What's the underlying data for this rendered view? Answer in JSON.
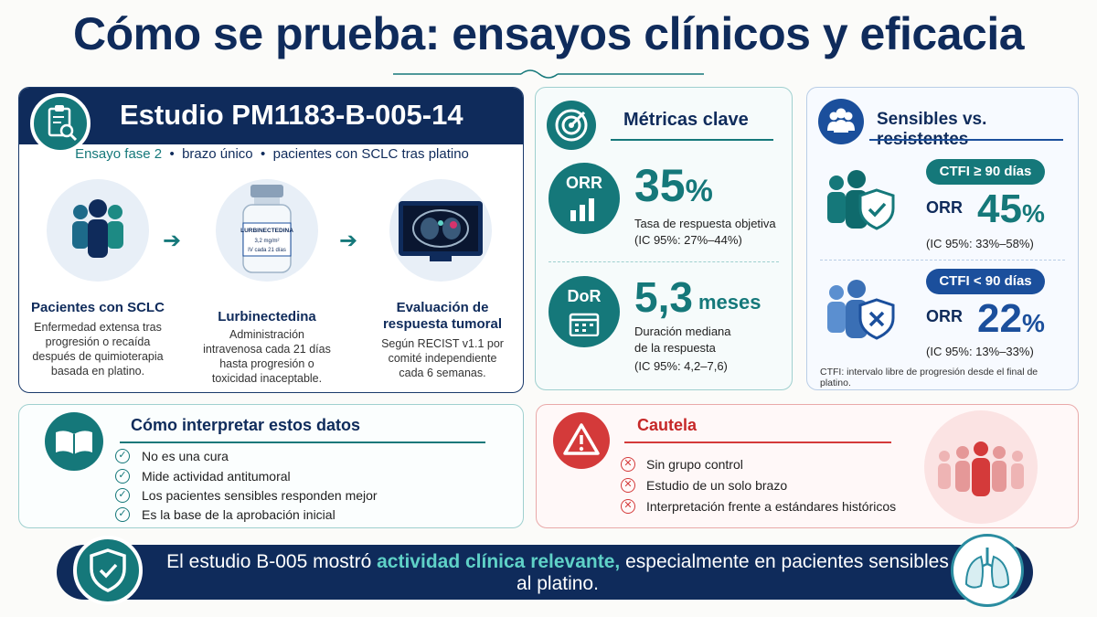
{
  "title": "Cómo se prueba: ensayos clínicos y eficacia",
  "study": {
    "title": "Estudio PM1183-B-005-14",
    "subtitle_a": "Ensayo fase 2",
    "subtitle_b": "brazo único",
    "subtitle_c": "pacientes con SCLC tras platino",
    "sep": "•",
    "steps": [
      {
        "title": "Pacientes con SCLC",
        "text": "Enfermedad extensa tras progresión o recaída después de quimioterapia basada en platino."
      },
      {
        "title": "Lurbinectedina",
        "text": "Administración intravenosa cada 21 días hasta progresión o toxicidad inaceptable."
      },
      {
        "title": "Evaluación de respuesta tumoral",
        "text": "Según RECIST v1.1 por comité independiente cada 6 semanas."
      }
    ],
    "vial_label_1": "LURBINECTEDINA",
    "vial_label_2": "3,2 mg/m²",
    "vial_label_3": "IV cada 21 días"
  },
  "metrics": {
    "heading": "Métricas clave",
    "orr": {
      "badge": "ORR",
      "value": "35",
      "unit": "%",
      "label": "Tasa de respuesta objetiva",
      "ci": "(IC 95%: 27%–44%)"
    },
    "dor": {
      "badge": "DoR",
      "value": "5,3",
      "unit": "meses",
      "label_1": "Duración mediana",
      "label_2": "de la respuesta",
      "ci": "(IC 95%: 4,2–7,6)"
    }
  },
  "sensitive": {
    "heading": "Sensibles vs. resistentes",
    "g1": {
      "pill": "CTFI ≥ 90 días",
      "orr": "ORR",
      "value": "45",
      "unit": "%",
      "ci": "(IC 95%: 33%–58%)"
    },
    "g2": {
      "pill": "CTFI < 90 días",
      "orr": "ORR",
      "value": "22",
      "unit": "%",
      "ci": "(IC 95%: 13%–33%)"
    },
    "footnote": "CTFI: intervalo libre de progresión desde el final de platino."
  },
  "interpret": {
    "heading": "Cómo interpretar estos datos",
    "items": [
      "No es una cura",
      "Mide actividad antitumoral",
      "Los pacientes sensibles responden mejor",
      "Es la base de la aprobación inicial"
    ]
  },
  "caution": {
    "heading": "Cautela",
    "items": [
      "Sin grupo control",
      "Estudio de un solo brazo",
      "Interpretación frente a estándares históricos"
    ]
  },
  "banner": {
    "pre": "El estudio B-005 mostró ",
    "highlight": "actividad clínica relevante,",
    "post": " especialmente en pacientes sensibles al platino."
  },
  "colors": {
    "navy": "#0f2b5b",
    "teal": "#15787a",
    "blue": "#1b4f9c",
    "red": "#d43a3a"
  }
}
